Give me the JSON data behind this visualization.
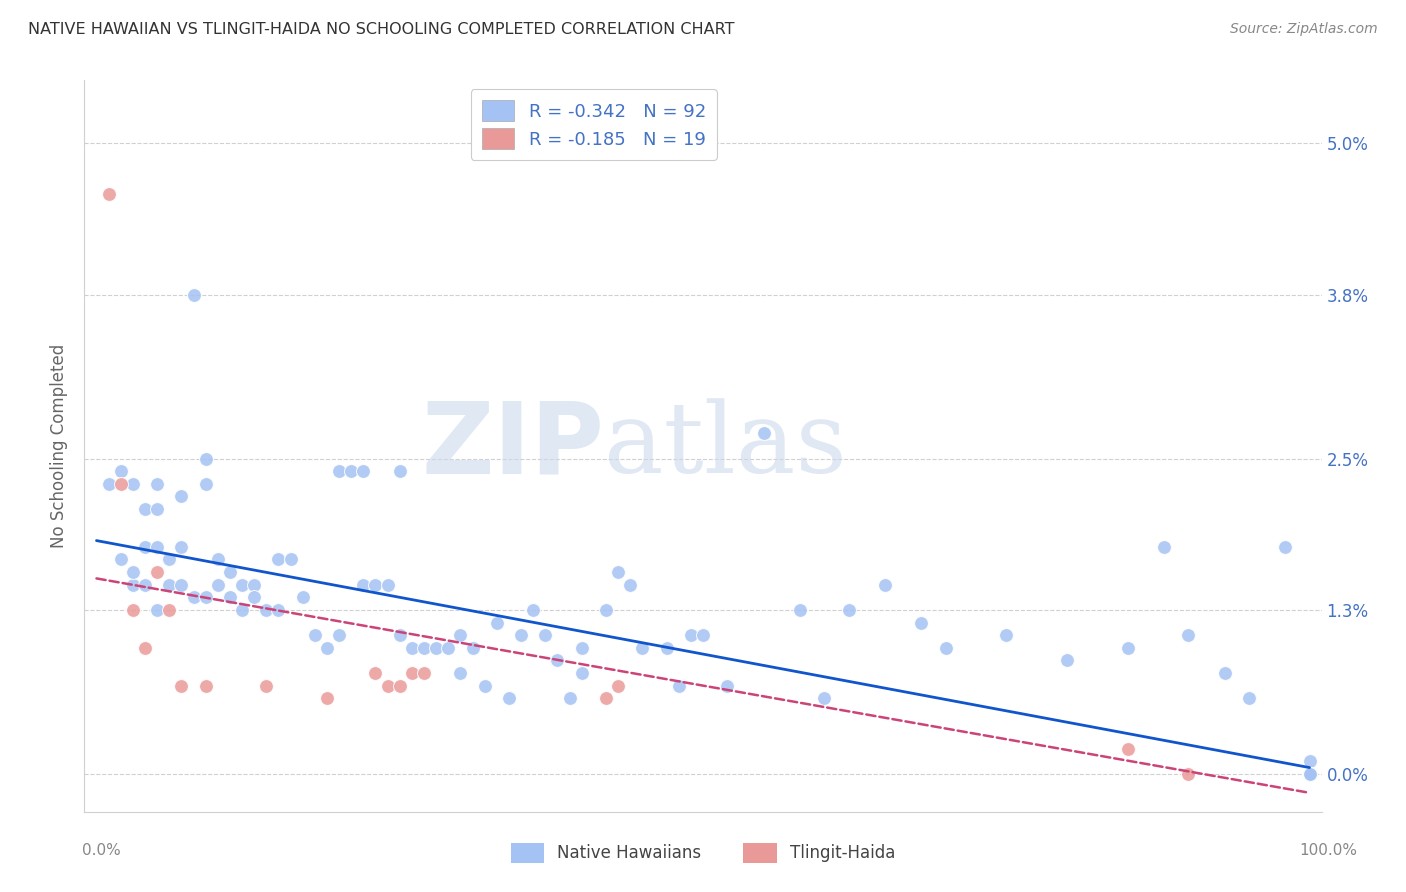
{
  "title": "NATIVE HAWAIIAN VS TLINGIT-HAIDA NO SCHOOLING COMPLETED CORRELATION CHART",
  "source": "Source: ZipAtlas.com",
  "ylabel": "No Schooling Completed",
  "ytick_vals": [
    0.0,
    1.3,
    2.5,
    3.8,
    5.0
  ],
  "ytick_labels": [
    "0.0%",
    "1.3%",
    "2.5%",
    "3.8%",
    "5.0%"
  ],
  "xlim": [
    -1,
    101
  ],
  "ylim": [
    -0.3,
    5.5
  ],
  "watermark1": "ZIP",
  "watermark2": "atlas",
  "legend_entry1": "R = -0.342   N = 92",
  "legend_entry2": "R = -0.185   N = 19",
  "legend_label1": "Native Hawaiians",
  "legend_label2": "Tlingit-Haida",
  "blue_color": "#a4c2f4",
  "pink_color": "#ea9999",
  "blue_line_color": "#1155cc",
  "pink_line_color": "#cc4477",
  "blue_scatter_x": [
    1,
    2,
    2,
    3,
    3,
    3,
    4,
    4,
    4,
    5,
    5,
    5,
    5,
    6,
    6,
    7,
    7,
    7,
    8,
    8,
    9,
    9,
    9,
    10,
    10,
    11,
    11,
    12,
    12,
    13,
    13,
    14,
    15,
    15,
    16,
    17,
    18,
    19,
    20,
    20,
    21,
    22,
    22,
    23,
    24,
    25,
    25,
    26,
    27,
    28,
    29,
    30,
    30,
    31,
    32,
    33,
    34,
    35,
    36,
    37,
    38,
    39,
    40,
    40,
    42,
    43,
    44,
    45,
    47,
    48,
    49,
    50,
    52,
    55,
    58,
    60,
    62,
    65,
    68,
    70,
    75,
    80,
    85,
    88,
    90,
    93,
    95,
    98,
    100,
    100,
    100,
    100
  ],
  "blue_scatter_y": [
    2.3,
    2.4,
    1.7,
    2.3,
    1.5,
    1.6,
    2.1,
    1.8,
    1.5,
    2.3,
    2.1,
    1.8,
    1.3,
    1.7,
    1.5,
    2.2,
    1.8,
    1.5,
    3.8,
    1.4,
    2.5,
    2.3,
    1.4,
    1.7,
    1.5,
    1.6,
    1.4,
    1.5,
    1.3,
    1.5,
    1.4,
    1.3,
    1.7,
    1.3,
    1.7,
    1.4,
    1.1,
    1.0,
    2.4,
    1.1,
    2.4,
    2.4,
    1.5,
    1.5,
    1.5,
    2.4,
    1.1,
    1.0,
    1.0,
    1.0,
    1.0,
    1.1,
    0.8,
    1.0,
    0.7,
    1.2,
    0.6,
    1.1,
    1.3,
    1.1,
    0.9,
    0.6,
    1.0,
    0.8,
    1.3,
    1.6,
    1.5,
    1.0,
    1.0,
    0.7,
    1.1,
    1.1,
    0.7,
    2.7,
    1.3,
    0.6,
    1.3,
    1.5,
    1.2,
    1.0,
    1.1,
    0.9,
    1.0,
    1.8,
    1.1,
    0.8,
    0.6,
    1.8,
    0.1,
    0.0,
    0.0,
    0.0
  ],
  "pink_scatter_x": [
    1,
    2,
    3,
    4,
    5,
    6,
    7,
    9,
    14,
    19,
    23,
    24,
    25,
    26,
    27,
    42,
    43,
    85,
    90
  ],
  "pink_scatter_y": [
    4.6,
    2.3,
    1.3,
    1.0,
    1.6,
    1.3,
    0.7,
    0.7,
    0.7,
    0.6,
    0.8,
    0.7,
    0.7,
    0.8,
    0.8,
    0.6,
    0.7,
    0.2,
    0.0
  ],
  "blue_trend_x0": 0,
  "blue_trend_x1": 100,
  "blue_trend_y0": 1.85,
  "blue_trend_y1": 0.05,
  "pink_trend_x0": 0,
  "pink_trend_x1": 100,
  "pink_trend_y0": 1.55,
  "pink_trend_y1": -0.15,
  "background_color": "#ffffff",
  "grid_color": "#d0d0d0",
  "title_color": "#333333",
  "right_tick_color": "#4472c4",
  "xtick_color": "#888888"
}
